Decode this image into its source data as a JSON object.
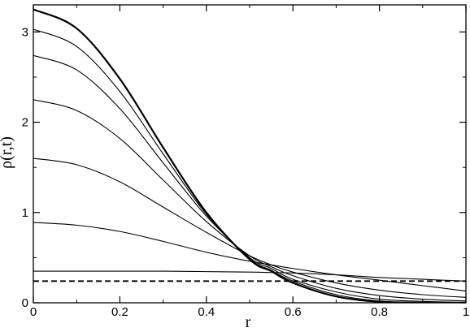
{
  "chart_data": {
    "type": "line",
    "title": "",
    "xlabel": "r",
    "ylabel": "ρ(r,t)",
    "xlim": [
      0,
      1
    ],
    "ylim": [
      0,
      3.3
    ],
    "x_ticks": [
      0,
      0.2,
      0.4,
      0.6,
      0.8,
      1
    ],
    "x_tick_labels": [
      "0",
      "0.2",
      "0.4",
      "0.6",
      "0.8",
      "1"
    ],
    "y_ticks": [
      0,
      1,
      2,
      3
    ],
    "y_tick_labels": [
      "0",
      "1",
      "2",
      "3"
    ],
    "grid": false,
    "legend": "none",
    "line_color": "#000000",
    "series": [
      {
        "style": "dashed",
        "x": [
          0,
          0.2,
          0.4,
          0.6,
          0.8,
          1.0
        ],
        "y": [
          0.24,
          0.24,
          0.24,
          0.24,
          0.24,
          0.24
        ]
      },
      {
        "style": "solid",
        "x": [
          0,
          0.1,
          0.2,
          0.3,
          0.4,
          0.5,
          0.55,
          0.6,
          0.7,
          0.8,
          0.9,
          1.0
        ],
        "y": [
          0.35,
          0.35,
          0.35,
          0.35,
          0.345,
          0.34,
          0.335,
          0.33,
          0.31,
          0.28,
          0.26,
          0.24
        ]
      },
      {
        "style": "solid",
        "x": [
          0,
          0.1,
          0.2,
          0.3,
          0.4,
          0.5,
          0.55,
          0.6,
          0.7,
          0.8,
          0.9,
          1.0
        ],
        "y": [
          0.89,
          0.86,
          0.79,
          0.68,
          0.56,
          0.46,
          0.42,
          0.38,
          0.31,
          0.25,
          0.19,
          0.13
        ]
      },
      {
        "style": "solid",
        "x": [
          0,
          0.1,
          0.2,
          0.3,
          0.4,
          0.5,
          0.55,
          0.6,
          0.7,
          0.8,
          0.9,
          1.0
        ],
        "y": [
          1.6,
          1.53,
          1.34,
          1.06,
          0.78,
          0.52,
          0.42,
          0.34,
          0.22,
          0.14,
          0.09,
          0.06
        ]
      },
      {
        "style": "solid",
        "x": [
          0,
          0.1,
          0.2,
          0.3,
          0.4,
          0.5,
          0.55,
          0.6,
          0.7,
          0.8,
          0.9,
          1.0
        ],
        "y": [
          2.25,
          2.13,
          1.82,
          1.36,
          0.9,
          0.52,
          0.4,
          0.3,
          0.16,
          0.08,
          0.04,
          0.02
        ]
      },
      {
        "style": "solid",
        "x": [
          0,
          0.1,
          0.2,
          0.3,
          0.4,
          0.5,
          0.55,
          0.6,
          0.7,
          0.8,
          0.9,
          1.0
        ],
        "y": [
          2.74,
          2.58,
          2.15,
          1.55,
          0.96,
          0.5,
          0.38,
          0.26,
          0.12,
          0.04,
          0.015,
          0.005
        ]
      },
      {
        "style": "solid",
        "x": [
          0,
          0.1,
          0.2,
          0.3,
          0.4,
          0.5,
          0.55,
          0.6,
          0.7,
          0.8,
          0.9,
          1.0
        ],
        "y": [
          3.03,
          2.84,
          2.34,
          1.65,
          0.98,
          0.49,
          0.36,
          0.24,
          0.09,
          0.02,
          0.005,
          0.0
        ]
      },
      {
        "style": "solid-thick",
        "x": [
          0,
          0.1,
          0.2,
          0.3,
          0.4,
          0.5,
          0.55,
          0.6,
          0.7,
          0.8,
          0.9,
          1.0
        ],
        "y": [
          3.25,
          3.04,
          2.48,
          1.72,
          1.0,
          0.48,
          0.35,
          0.22,
          0.07,
          0.01,
          0.0,
          0.0
        ]
      }
    ]
  }
}
